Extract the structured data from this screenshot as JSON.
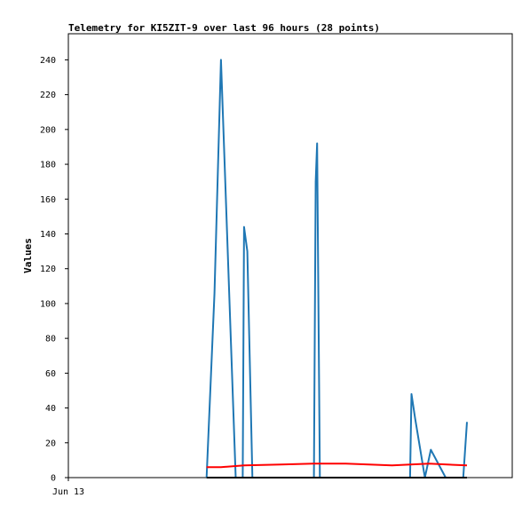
{
  "chart_data": {
    "type": "line",
    "title": "Telemetry for KI5ZIT-9 over last 96 hours (28 points)",
    "xlabel": "",
    "ylabel": "Values",
    "x_tick_labels": [
      {
        "label": "Jun 13",
        "x": 0
      }
    ],
    "xlim": [
      0,
      96
    ],
    "ylim": [
      0,
      255
    ],
    "y_ticks": [
      0,
      20,
      40,
      60,
      80,
      100,
      120,
      140,
      160,
      180,
      200,
      220,
      240
    ],
    "grid": false,
    "legend": "none",
    "series": [
      {
        "color": "#1f77b4",
        "x": [
          29.9,
          31.6,
          33.0,
          36.2,
          37.7,
          38.0,
          38.7,
          39.8,
          53.1,
          53.5,
          53.8,
          54.4,
          73.9,
          74.2,
          75.0,
          77.1,
          78.4,
          81.6,
          85.4,
          86.2
        ],
        "y": [
          0,
          106,
          240,
          0,
          0,
          144,
          130,
          0,
          0,
          170,
          192,
          0,
          0,
          48,
          34,
          0,
          16,
          0,
          0,
          32
        ]
      },
      {
        "color": "#ff0000",
        "x": [
          29.9,
          33.0,
          38.0,
          46.0,
          53.0,
          60.0,
          70.0,
          78.0,
          86.2
        ],
        "y": [
          6,
          6,
          7,
          7.5,
          8,
          8,
          7,
          8,
          7
        ]
      },
      {
        "color": "#000000",
        "x": [
          29.9,
          86.2
        ],
        "y": [
          0,
          0
        ]
      }
    ]
  }
}
